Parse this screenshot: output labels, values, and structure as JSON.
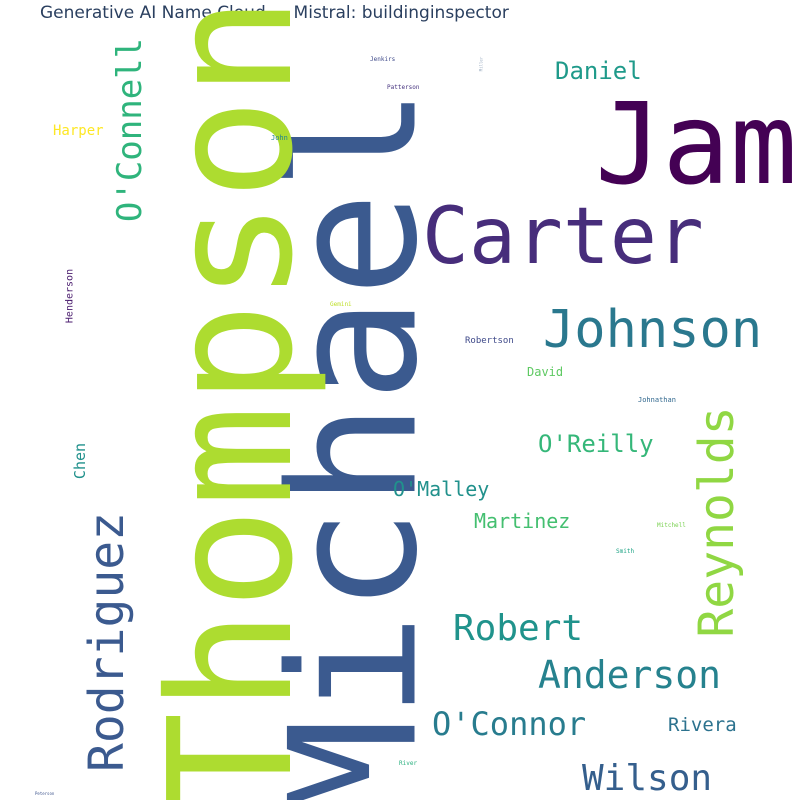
{
  "chart_data": {
    "type": "wordcloud",
    "title": "Generative AI Name Cloud — Mistral: buildinginspector",
    "words": [
      {
        "text": "Michael",
        "color": "#3b5a8f"
      },
      {
        "text": "Thompson",
        "color": "#addc30"
      },
      {
        "text": "James",
        "color": "#440154"
      },
      {
        "text": "Carter",
        "color": "#472d7b"
      },
      {
        "text": "Johnson",
        "color": "#2a788e"
      },
      {
        "text": "Rodriguez",
        "color": "#3b5a8f"
      },
      {
        "text": "Reynolds",
        "color": "#90d743"
      },
      {
        "text": "O'Connell",
        "color": "#2fb47c"
      },
      {
        "text": "Anderson",
        "color": "#26828e"
      },
      {
        "text": "Robert",
        "color": "#20938c"
      },
      {
        "text": "O'Connor",
        "color": "#287c8e"
      },
      {
        "text": "Wilson",
        "color": "#355f8d"
      },
      {
        "text": "Daniel",
        "color": "#1f9a8a"
      },
      {
        "text": "O'Reilly",
        "color": "#35b779"
      },
      {
        "text": "Martinez",
        "color": "#44bf70"
      },
      {
        "text": "O'Malley",
        "color": "#21918c"
      },
      {
        "text": "Rivera",
        "color": "#2c728e"
      },
      {
        "text": "Harper",
        "color": "#fde725"
      },
      {
        "text": "Chen",
        "color": "#21918c"
      },
      {
        "text": "Henderson",
        "color": "#481a6c"
      },
      {
        "text": "David",
        "color": "#5ec962"
      },
      {
        "text": "Robertson",
        "color": "#3e4989"
      },
      {
        "text": "Johnathan",
        "color": "#31688e"
      },
      {
        "text": "Jenkirs",
        "color": "#3e4989"
      },
      {
        "text": "Patterson",
        "color": "#46337f"
      },
      {
        "text": "John",
        "color": "#25848e"
      },
      {
        "text": "Smith",
        "color": "#20a486"
      },
      {
        "text": "Mitchell",
        "color": "#7ad151"
      },
      {
        "text": "River",
        "color": "#2ab07f"
      },
      {
        "text": "Gemini",
        "color": "#bddf26"
      },
      {
        "text": "Miller",
        "color": "#9fb0c4"
      },
      {
        "text": "Peterson",
        "color": "#3b528b"
      }
    ]
  }
}
